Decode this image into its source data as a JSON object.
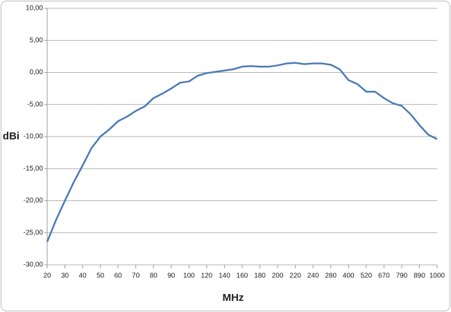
{
  "chart_data": {
    "type": "line",
    "xlabel": "MHz",
    "ylabel": "dBi",
    "categories": [
      "20",
      null,
      "30",
      null,
      "40",
      null,
      "50",
      null,
      "60",
      null,
      "70",
      null,
      "80",
      null,
      "90",
      null,
      "100",
      null,
      "120",
      null,
      "140",
      null,
      "160",
      null,
      "180",
      null,
      "200",
      null,
      "220",
      null,
      "240",
      null,
      "280",
      null,
      "400",
      null,
      "520",
      null,
      "670",
      null,
      "790",
      null,
      "890",
      null,
      "1000"
    ],
    "series": [
      {
        "name": "dBi",
        "color": "#4a7ab5",
        "values": [
          -26.4,
          -23,
          -20,
          -17.1,
          -14.5,
          -11.8,
          -10,
          -8.9,
          -7.6,
          -6.9,
          -6.0,
          -5.3,
          -4.0,
          -3.3,
          -2.5,
          -1.6,
          -1.4,
          -0.5,
          -0.1,
          0.1,
          0.3,
          0.5,
          0.9,
          1.0,
          0.9,
          0.9,
          1.1,
          1.4,
          1.5,
          1.3,
          1.4,
          1.4,
          1.2,
          0.5,
          -1.2,
          -1.8,
          -3.0,
          -3.0,
          -4.0,
          -4.8,
          -5.2,
          -6.5,
          -8.2,
          -9.7,
          -10.4
        ]
      }
    ],
    "ylim": [
      -30,
      10
    ],
    "yticks": [
      {
        "value": -30,
        "label": "-30,00"
      },
      {
        "value": -25,
        "label": "-25,00"
      },
      {
        "value": -20,
        "label": "-20,00"
      },
      {
        "value": -15,
        "label": "-15,00"
      },
      {
        "value": -10,
        "label": "-10,00"
      },
      {
        "value": -5,
        "label": "-5,00"
      },
      {
        "value": 0,
        "label": "0,00"
      },
      {
        "value": 5,
        "label": "5,00"
      },
      {
        "value": 10,
        "label": "10,00"
      }
    ],
    "grid": true
  }
}
